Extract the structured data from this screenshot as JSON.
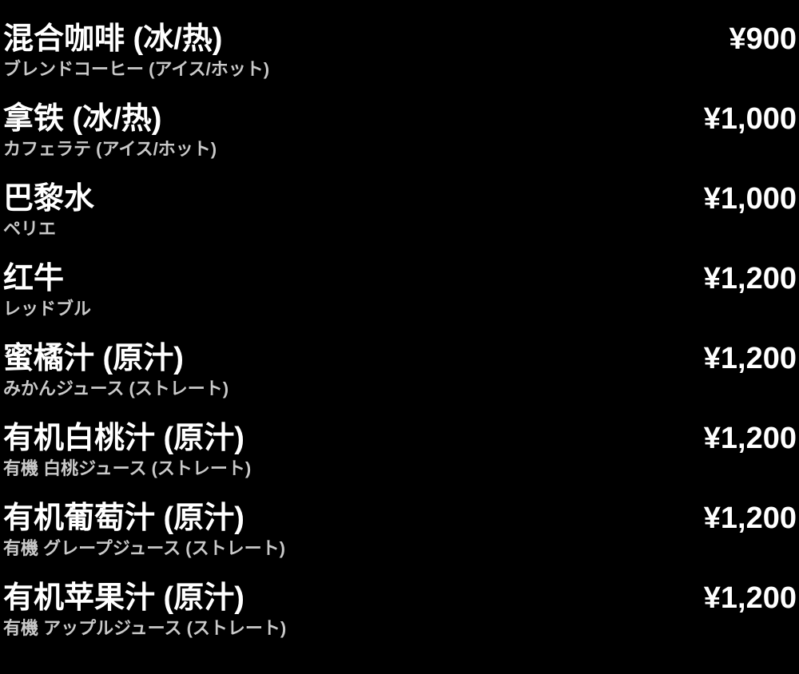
{
  "page": {
    "background_color": "#000000",
    "title_color": "#ffffff",
    "subtitle_color": "#c9c9c9",
    "currency_symbol": "¥"
  },
  "menu": {
    "items": [
      {
        "name": "混合咖啡 (冰/热)",
        "subtitle": "ブレンドコーヒー (アイス/ホット)",
        "price": "¥900"
      },
      {
        "name": "拿铁 (冰/热)",
        "subtitle": "カフェラテ (アイス/ホット)",
        "price": "¥1,000"
      },
      {
        "name": "巴黎水",
        "subtitle": "ペリエ",
        "price": "¥1,000"
      },
      {
        "name": "红牛",
        "subtitle": "レッドブル",
        "price": "¥1,200"
      },
      {
        "name": "蜜橘汁 (原汁)",
        "subtitle": "みかんジュース (ストレート)",
        "price": "¥1,200"
      },
      {
        "name": "有机白桃汁 (原汁)",
        "subtitle": "有機 白桃ジュース (ストレート)",
        "price": "¥1,200"
      },
      {
        "name": "有机葡萄汁 (原汁)",
        "subtitle": "有機 グレープジュース (ストレート)",
        "price": "¥1,200"
      },
      {
        "name": "有机苹果汁 (原汁)",
        "subtitle": "有機 アップルジュース (ストレート)",
        "price": "¥1,200"
      }
    ]
  }
}
